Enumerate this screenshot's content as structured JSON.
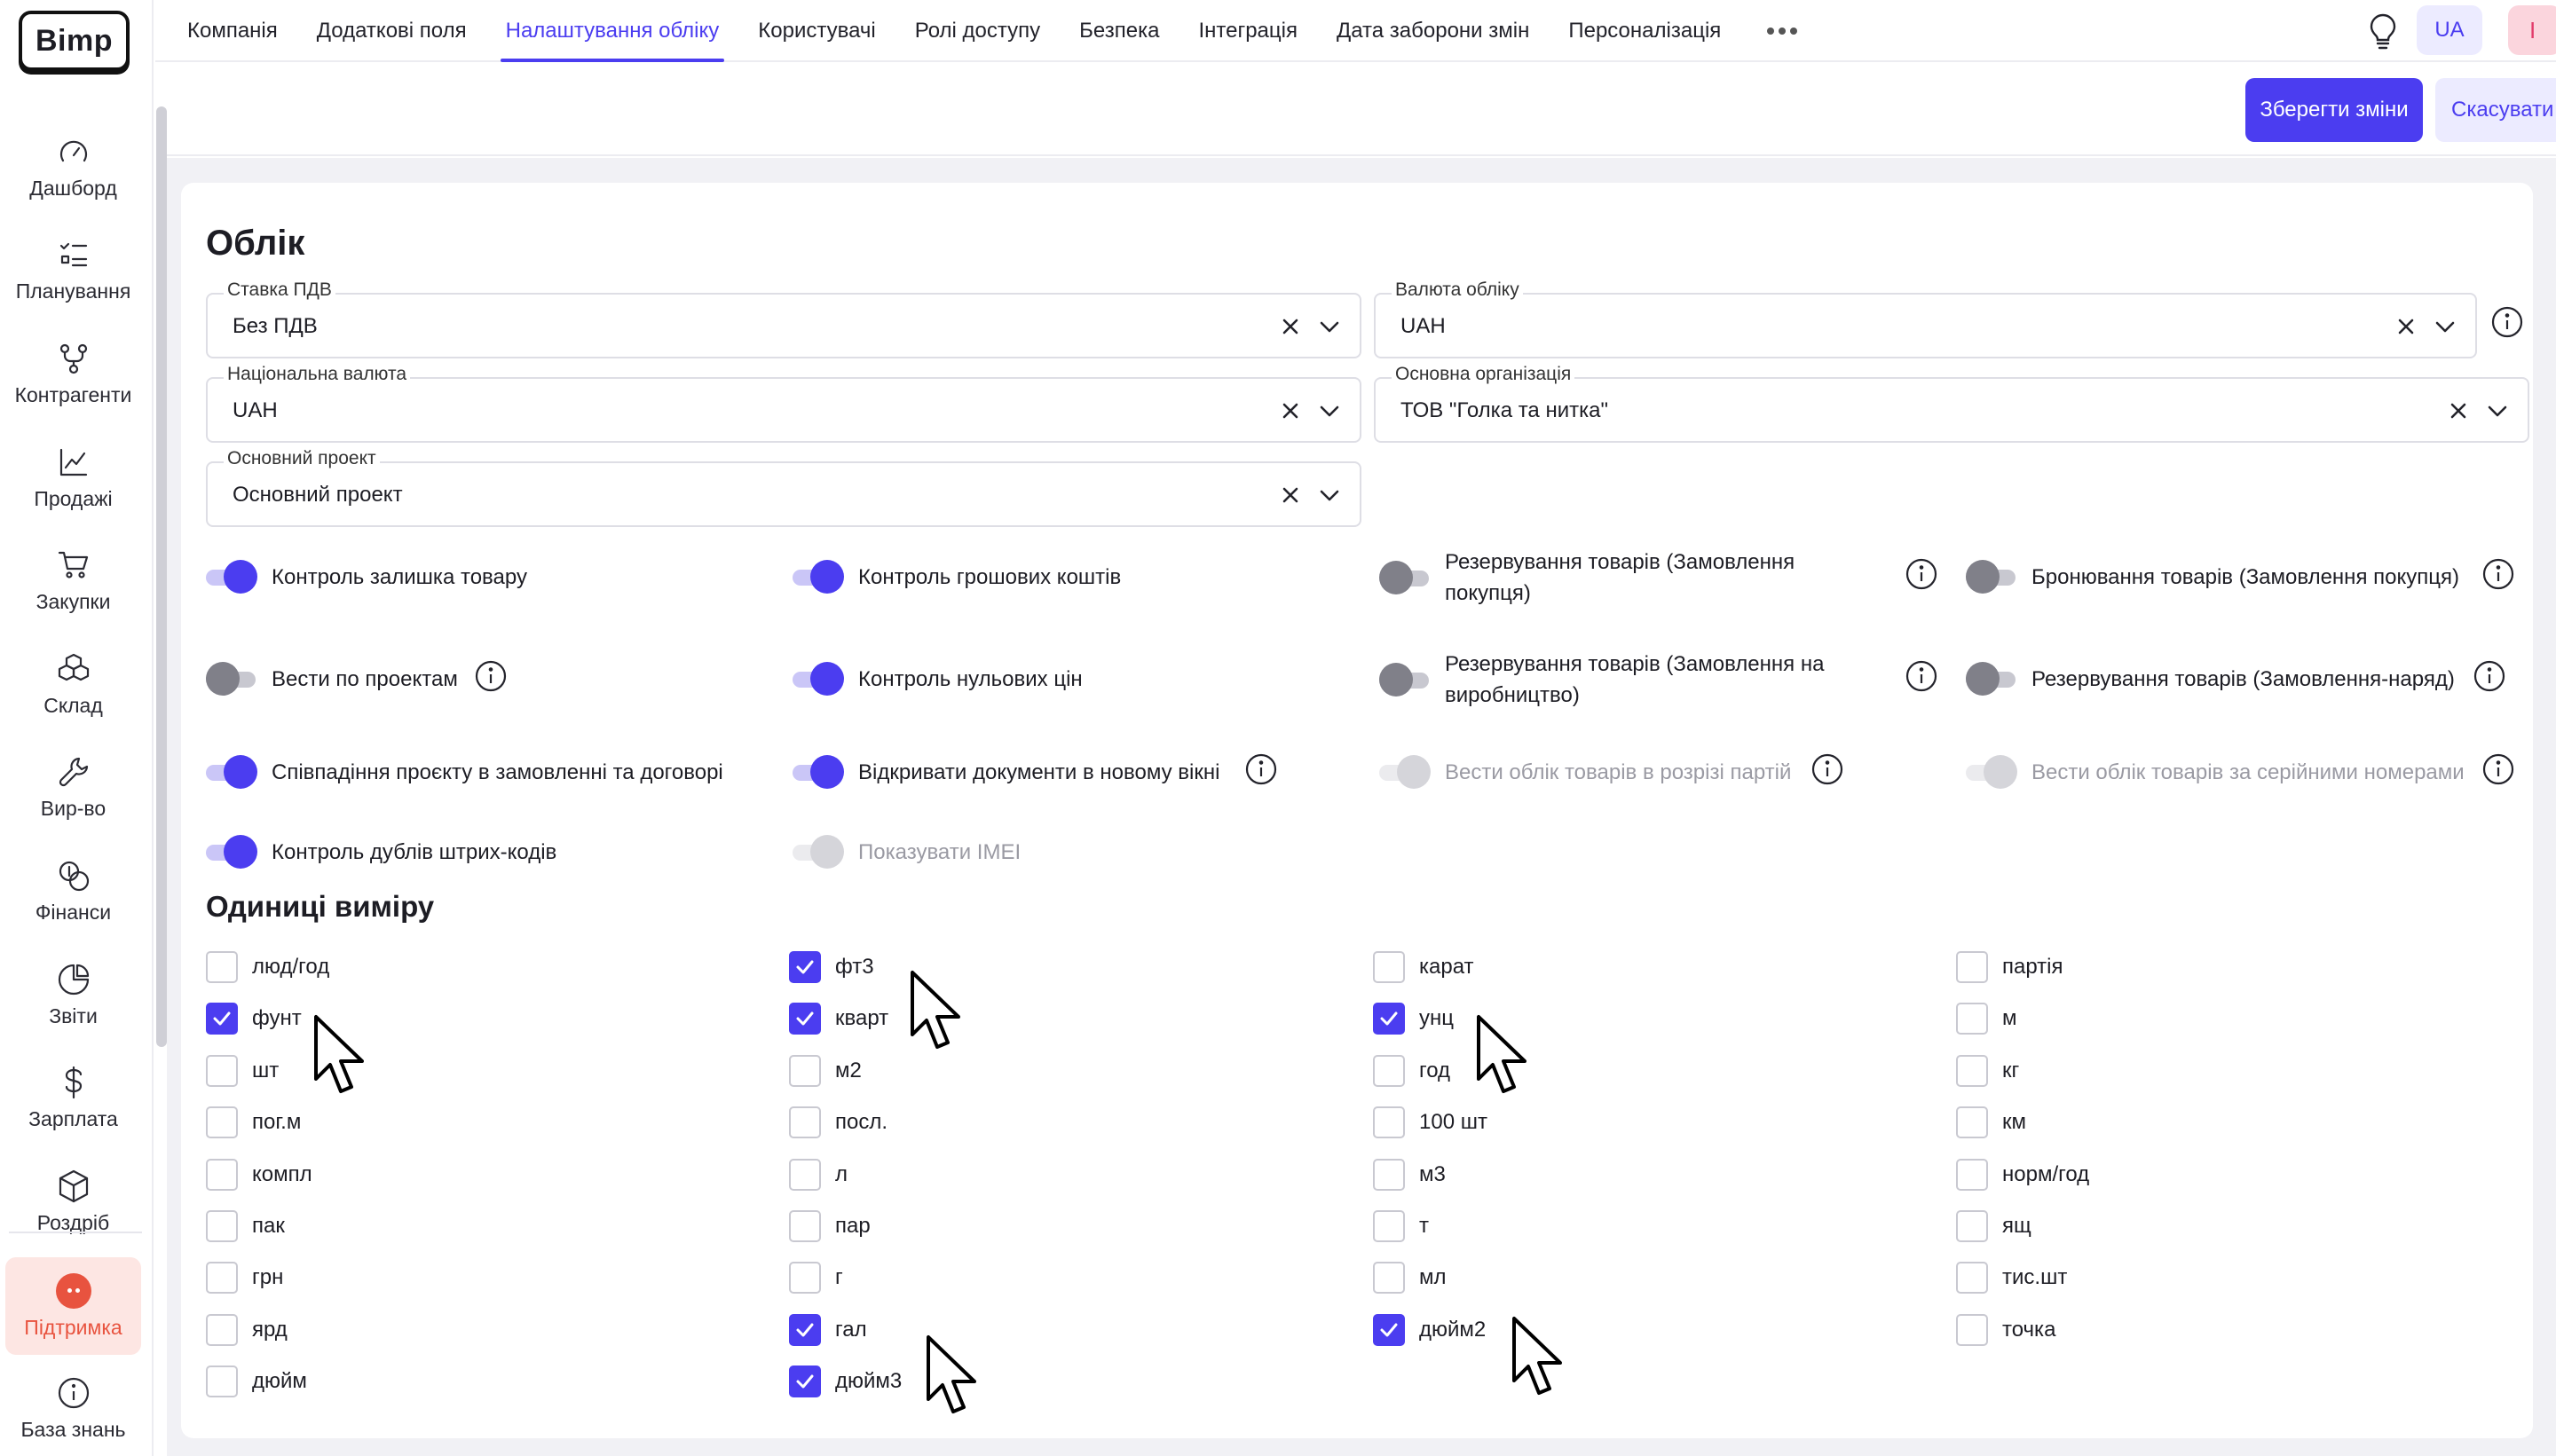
{
  "logo": "Bimp",
  "sidebar": {
    "items": [
      {
        "label": "Дашборд",
        "icon": "gauge-icon"
      },
      {
        "label": "Планування",
        "icon": "checklist-icon"
      },
      {
        "label": "Контрагенти",
        "icon": "branch-icon"
      },
      {
        "label": "Продажі",
        "icon": "line-chart-icon"
      },
      {
        "label": "Закупки",
        "icon": "cart-icon"
      },
      {
        "label": "Склад",
        "icon": "boxes-icon"
      },
      {
        "label": "Вир-во",
        "icon": "wrench-icon"
      },
      {
        "label": "Фінанси",
        "icon": "coins-icon"
      },
      {
        "label": "Звіти",
        "icon": "pie-chart-icon"
      },
      {
        "label": "Зарплата",
        "icon": "dollar-icon"
      },
      {
        "label": "Роздріб",
        "icon": "package-icon"
      }
    ],
    "support": "Підтримка",
    "knowledge": "База знань"
  },
  "tabs": [
    {
      "label": "Компанія"
    },
    {
      "label": "Додаткові поля"
    },
    {
      "label": "Налаштування обліку",
      "active": true
    },
    {
      "label": "Користувачі"
    },
    {
      "label": "Ролі доступу"
    },
    {
      "label": "Безпека"
    },
    {
      "label": "Інтеграція"
    },
    {
      "label": "Дата заборони змін"
    },
    {
      "label": "Персоналізація"
    }
  ],
  "header": {
    "lang": "UA",
    "user_initial": "I"
  },
  "actions": {
    "save": "Зберегти зміни",
    "cancel": "Скасувати"
  },
  "accounting": {
    "title": "Облік",
    "fields": {
      "vat": {
        "label": "Ставка ПДВ",
        "value": "Без ПДВ"
      },
      "currency": {
        "label": "Валюта обліку",
        "value": "UAH"
      },
      "national": {
        "label": "Національна валюта",
        "value": "UAH"
      },
      "org": {
        "label": "Основна організація",
        "value": "ТОВ \"Голка та нитка\""
      },
      "project": {
        "label": "Основний проект",
        "value": "Основний проект"
      }
    },
    "toggles": [
      {
        "label": "Контроль залишка товару",
        "state": "on"
      },
      {
        "label": "Контроль грошових коштів",
        "state": "on"
      },
      {
        "label": "Резервування товарів (Замовлення покупця)",
        "state": "off"
      },
      {
        "label": "Бронювання товарів (Замовлення покупця)",
        "state": "off"
      },
      {
        "label": "Вести по проектам",
        "state": "off"
      },
      {
        "label": "Контроль нульових цін",
        "state": "on"
      },
      {
        "label": "Резервування товарів (Замовлення на виробництво)",
        "state": "off"
      },
      {
        "label": "Резервування товарів (Замовлення-наряд)",
        "state": "off"
      },
      {
        "label": "Співпадіння проєкту в замовленні та договорі",
        "state": "on"
      },
      {
        "label": "Відкривати документи в новому вікні",
        "state": "on"
      },
      {
        "label": "Вести облік товарів в розрізі партій",
        "state": "disabled"
      },
      {
        "label": "Вести облік товарів за серійними номерами",
        "state": "disabled"
      },
      {
        "label": "Контроль дублів штрих-кодів",
        "state": "on"
      },
      {
        "label": "Показувати IMEI",
        "state": "disabled"
      }
    ]
  },
  "units": {
    "title": "Одиниці виміру",
    "columns": [
      [
        {
          "label": "люд/год",
          "checked": false
        },
        {
          "label": "фунт",
          "checked": true
        },
        {
          "label": "шт",
          "checked": false
        },
        {
          "label": "пог.м",
          "checked": false
        },
        {
          "label": "компл",
          "checked": false
        },
        {
          "label": "пак",
          "checked": false
        },
        {
          "label": "грн",
          "checked": false
        },
        {
          "label": "ярд",
          "checked": false
        },
        {
          "label": "дюйм",
          "checked": false
        }
      ],
      [
        {
          "label": "фт3",
          "checked": true
        },
        {
          "label": "кварт",
          "checked": true
        },
        {
          "label": "м2",
          "checked": false
        },
        {
          "label": "посл.",
          "checked": false
        },
        {
          "label": "л",
          "checked": false
        },
        {
          "label": "пар",
          "checked": false
        },
        {
          "label": "г",
          "checked": false
        },
        {
          "label": "гал",
          "checked": true
        },
        {
          "label": "дюйм3",
          "checked": true
        }
      ],
      [
        {
          "label": "карат",
          "checked": false
        },
        {
          "label": "унц",
          "checked": true
        },
        {
          "label": "год",
          "checked": false
        },
        {
          "label": "100 шт",
          "checked": false
        },
        {
          "label": "м3",
          "checked": false
        },
        {
          "label": "т",
          "checked": false
        },
        {
          "label": "мл",
          "checked": false
        },
        {
          "label": "дюйм2",
          "checked": true
        }
      ],
      [
        {
          "label": "партія",
          "checked": false
        },
        {
          "label": "м",
          "checked": false
        },
        {
          "label": "кг",
          "checked": false
        },
        {
          "label": "км",
          "checked": false
        },
        {
          "label": "норм/год",
          "checked": false
        },
        {
          "label": "ящ",
          "checked": false
        },
        {
          "label": "тис.шт",
          "checked": false
        },
        {
          "label": "точка",
          "checked": false
        }
      ]
    ]
  },
  "colors": {
    "accent": "#4b3df0",
    "support": "#e8533f"
  }
}
